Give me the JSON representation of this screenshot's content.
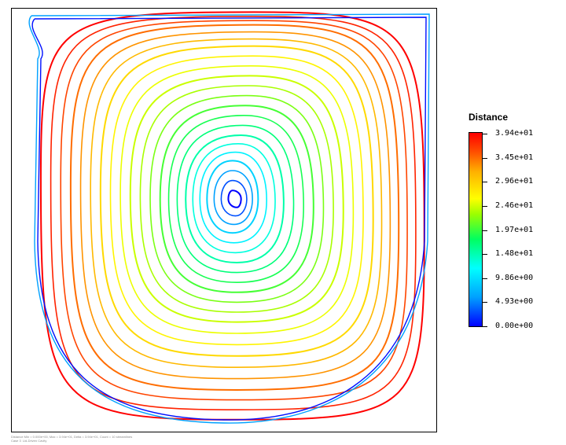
{
  "chart_data": {
    "type": "line",
    "title": "",
    "legend": {
      "title": "Distance",
      "placement": "right",
      "min": 0,
      "max": 39.4,
      "ticks": [
        "3.94e+01",
        "3.45e+01",
        "2.96e+01",
        "2.46e+01",
        "1.97e+01",
        "1.48e+01",
        "9.86e+00",
        "4.93e+00",
        "0.00e+00"
      ]
    },
    "colormap": [
      "#0000ff",
      "#00a0ff",
      "#00ffff",
      "#00ff60",
      "#9cff00",
      "#ffff00",
      "#ffb000",
      "#ff5000",
      "#ff0000"
    ],
    "series": [
      {
        "x": [
          0.52,
          0.54,
          0.53,
          0.51
        ],
        "y": [
          0.57,
          0.55,
          0.53,
          0.55
        ],
        "distance": 0.0
      },
      {
        "x": [
          0.52,
          0.58,
          0.52,
          0.46
        ],
        "y": [
          0.64,
          0.55,
          0.47,
          0.55
        ],
        "distance": 7.5
      },
      {
        "x": [
          0.54,
          0.64,
          0.53,
          0.41
        ],
        "y": [
          0.7,
          0.54,
          0.4,
          0.55
        ],
        "distance": 12.5
      },
      {
        "x": [
          0.55,
          0.71,
          0.53,
          0.35
        ],
        "y": [
          0.77,
          0.53,
          0.33,
          0.55
        ],
        "distance": 17.0
      },
      {
        "x": [
          0.56,
          0.78,
          0.53,
          0.28
        ],
        "y": [
          0.84,
          0.52,
          0.26,
          0.56
        ],
        "distance": 22.0
      },
      {
        "x": [
          0.57,
          0.85,
          0.53,
          0.21
        ],
        "y": [
          0.91,
          0.5,
          0.18,
          0.57
        ],
        "distance": 27.0
      },
      {
        "x": [
          0.57,
          0.91,
          0.53,
          0.14
        ],
        "y": [
          0.96,
          0.48,
          0.1,
          0.58
        ],
        "distance": 33.0
      },
      {
        "x": [
          0.57,
          0.97,
          0.53,
          0.07
        ],
        "y": [
          0.99,
          0.46,
          0.03,
          0.6
        ],
        "distance": 39.4
      },
      {
        "x": [
          0.5,
          0.99,
          0.52,
          0.04
        ],
        "y": [
          1.0,
          0.45,
          0.02,
          0.6
        ],
        "distance": 5.0
      },
      {
        "x": [
          0.5,
          1.0,
          0.52,
          0.03
        ],
        "y": [
          1.0,
          0.44,
          0.01,
          0.6
        ],
        "distance": 0.5
      }
    ]
  },
  "footer": {
    "line1": "Distance Min = 0.000e+00, Max = 3.94e+01, Delta = 3.94e+01, Count = 10 streamlines",
    "line2": "Case 3  Lid-Driven Cavity"
  }
}
